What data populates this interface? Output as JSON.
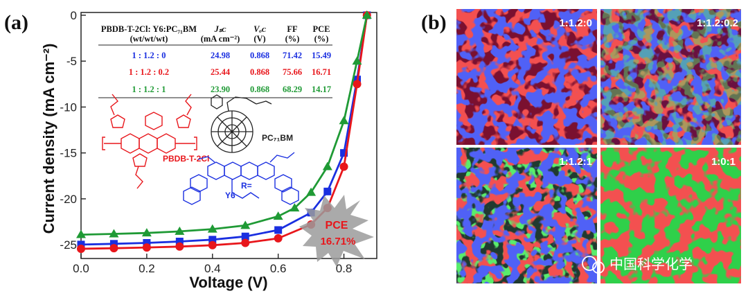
{
  "panel_a_label": "(a)",
  "panel_b_label": "(b)",
  "chart_data": {
    "type": "line",
    "title": "",
    "xlabel": "Voltage (V)",
    "ylabel": "Current density (mA cm⁻²)",
    "xlim": [
      0.0,
      0.9
    ],
    "ylim": [
      -26.5,
      0.3
    ],
    "x_ticks": [
      0.0,
      0.2,
      0.4,
      0.6,
      0.8
    ],
    "y_ticks": [
      0,
      -5,
      -10,
      -15,
      -20,
      -25
    ],
    "x_tick_labels": [
      "0.0",
      "0.2",
      "0.4",
      "0.6",
      "0.8"
    ],
    "y_tick_labels": [
      "0",
      "-5",
      "-10",
      "-15",
      "-20",
      "-25"
    ],
    "series": [
      {
        "name": "1 : 1.2 : 0",
        "color": "#1a2fe0",
        "marker": "square",
        "x": [
          0.0,
          0.1,
          0.2,
          0.3,
          0.4,
          0.5,
          0.6,
          0.7,
          0.75,
          0.8,
          0.84,
          0.87
        ],
        "y": [
          -24.98,
          -24.9,
          -24.8,
          -24.65,
          -24.45,
          -24.1,
          -23.4,
          -21.5,
          -19.2,
          -15.0,
          -7.0,
          0.0
        ]
      },
      {
        "name": "1 : 1.2 : 0.2",
        "color": "#e8161b",
        "marker": "circle",
        "x": [
          0.0,
          0.1,
          0.2,
          0.3,
          0.4,
          0.5,
          0.6,
          0.7,
          0.75,
          0.8,
          0.84,
          0.87
        ],
        "y": [
          -25.44,
          -25.38,
          -25.3,
          -25.2,
          -25.05,
          -24.8,
          -24.3,
          -22.8,
          -21.0,
          -16.5,
          -7.5,
          0.0
        ]
      },
      {
        "name": "1 : 1.2 : 1",
        "color": "#1f9a35",
        "marker": "triangle",
        "x": [
          0.0,
          0.1,
          0.2,
          0.3,
          0.4,
          0.5,
          0.6,
          0.65,
          0.7,
          0.75,
          0.8,
          0.84,
          0.87
        ],
        "y": [
          -23.9,
          -23.82,
          -23.72,
          -23.55,
          -23.3,
          -22.9,
          -21.9,
          -21.0,
          -19.3,
          -16.5,
          -11.5,
          -5.0,
          0.0
        ]
      }
    ],
    "table": {
      "headers": [
        "PBDB-T-2Cl: Y6:PC₇₁BM",
        "Jₛᴄ",
        "Vₒᴄ",
        "FF",
        "PCE"
      ],
      "subheaders": [
        "(wt/wt/wt)",
        "(mA cm⁻²)",
        "(V)",
        "(%)",
        "(%)"
      ],
      "rows": [
        {
          "ratio": "1 : 1.2 : 0",
          "jsc": "24.98",
          "voc": "0.868",
          "ff": "71.42",
          "pce": "15.49",
          "color": "#1a2fe0"
        },
        {
          "ratio": "1 : 1.2 : 0.2",
          "jsc": "25.44",
          "voc": "0.868",
          "ff": "75.66",
          "pce": "16.71",
          "color": "#e8161b"
        },
        {
          "ratio": "1 : 1.2 : 1",
          "jsc": "23.90",
          "voc": "0.868",
          "ff": "68.29",
          "pce": "14.17",
          "color": "#1f9a35"
        }
      ]
    },
    "annotations": [
      {
        "text": "PCE",
        "color": "#e8161b"
      },
      {
        "text": "16.71%",
        "color": "#e8161b"
      }
    ],
    "molecule_labels": {
      "donor": "PBDB-T-2Cl",
      "acceptor": "Y6",
      "fullerene": "PC₇₁BM",
      "r_group": "R="
    }
  },
  "maps": [
    {
      "label": "1:1.2:0"
    },
    {
      "label": "1:1.2:0.2"
    },
    {
      "label": "1:1.2:1"
    },
    {
      "label": "1:0:1"
    }
  ],
  "watermark": "中国科学化学",
  "colors": {
    "blue": "#1a2fe0",
    "red": "#e8161b",
    "green": "#1f9a35"
  }
}
